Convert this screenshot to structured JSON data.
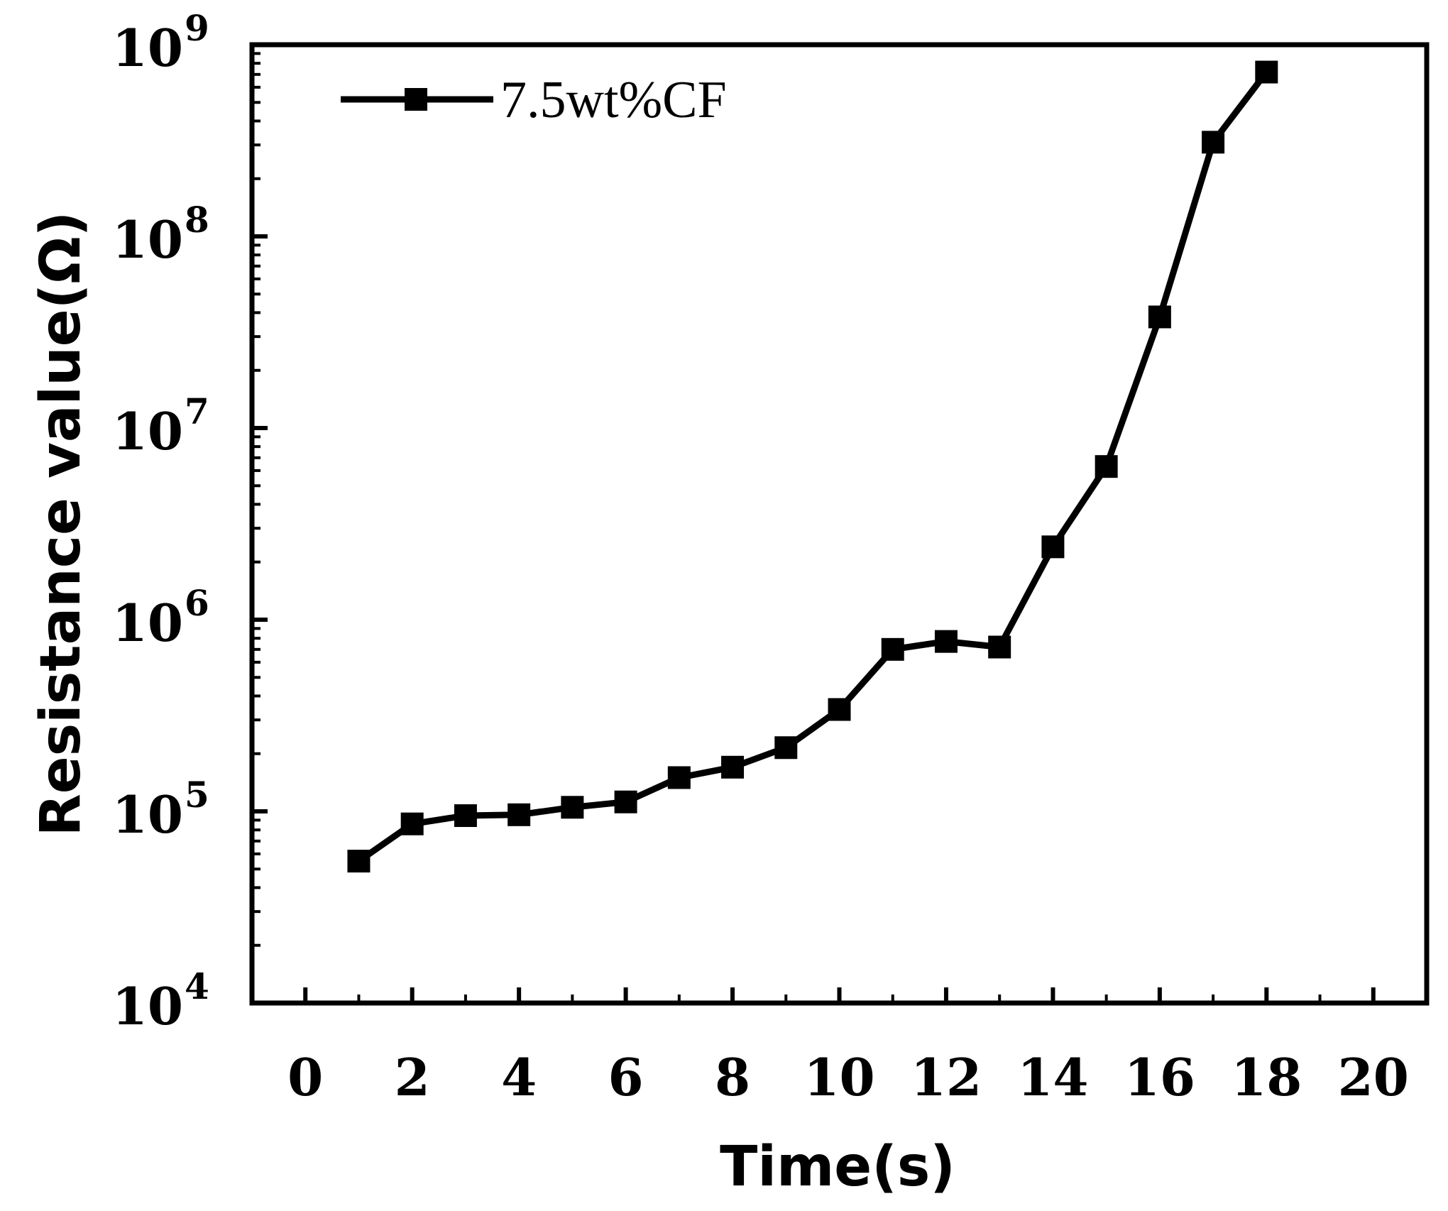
{
  "chart_data": {
    "type": "line",
    "title": "",
    "xlabel": "Time(s)",
    "ylabel": "Resistance value(Ω)",
    "xscale": "linear",
    "yscale": "log",
    "xlim": [
      -1,
      21
    ],
    "ylim": [
      10000,
      1000000000
    ],
    "x_ticks": [
      0,
      2,
      4,
      6,
      8,
      10,
      12,
      14,
      16,
      18,
      20
    ],
    "x_tick_labels": [
      "0",
      "2",
      "4",
      "6",
      "8",
      "10",
      "12",
      "14",
      "16",
      "18",
      "20"
    ],
    "y_ticks": [
      10000,
      100000,
      1000000,
      10000000,
      100000000,
      1000000000
    ],
    "y_tick_labels": [
      {
        "base": "10",
        "exp": "4"
      },
      {
        "base": "10",
        "exp": "5"
      },
      {
        "base": "10",
        "exp": "6"
      },
      {
        "base": "10",
        "exp": "7"
      },
      {
        "base": "10",
        "exp": "8"
      },
      {
        "base": "10",
        "exp": "9"
      }
    ],
    "grid": false,
    "legend_position": "top-left",
    "series": [
      {
        "name": "7.5wt%CF",
        "marker": "square",
        "color": "#000000",
        "x": [
          1,
          2,
          3,
          4,
          5,
          6,
          7,
          8,
          9,
          10,
          11,
          12,
          13,
          14,
          15,
          16,
          17,
          18
        ],
        "values": [
          55000,
          86000,
          95000,
          96000,
          105000,
          112000,
          150000,
          170000,
          215000,
          340000,
          700000,
          770000,
          720000,
          2400000,
          6300000,
          38000000,
          310000000,
          720000000
        ]
      }
    ]
  }
}
